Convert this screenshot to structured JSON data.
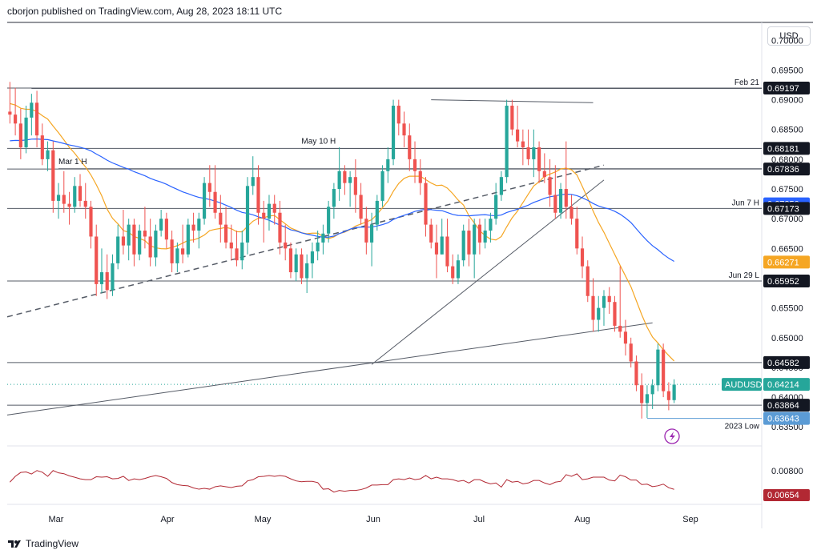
{
  "header": {
    "text": "cborjon published on TradingView.com, Aug 28, 2023 18:11 UTC"
  },
  "currency_button": "USD",
  "footer": {
    "logo_text": "TradingView"
  },
  "colors": {
    "up": "#26a69a",
    "down": "#ef5350",
    "sma50": "#f5a623",
    "sma200": "#2962ff",
    "lines": "#555b66",
    "indicator": "#b22833"
  },
  "chart_data": {
    "type": "candlestick",
    "symbol": "AUDUSD",
    "price_axis": {
      "range": [
        0.6318,
        0.703
      ],
      "ticks": [
        "0.70000",
        "0.69500",
        "0.69000",
        "0.68500",
        "0.68000",
        "0.67500",
        "0.67000",
        "0.66500",
        "0.66000",
        "0.65500",
        "0.65000",
        "0.64500",
        "0.64000",
        "0.63500"
      ]
    },
    "x_axis": {
      "labels": [
        {
          "label": "Mar",
          "date": "2023-03-01"
        },
        {
          "label": "Apr",
          "date": "2023-04-03"
        },
        {
          "label": "May",
          "date": "2023-05-01"
        },
        {
          "label": "Jun",
          "date": "2023-06-01"
        },
        {
          "label": "Jul",
          "date": "2023-07-03"
        },
        {
          "label": "Aug",
          "date": "2023-08-01"
        },
        {
          "label": "Sep",
          "date": "2023-09-01"
        }
      ]
    },
    "badges": [
      {
        "value": "0.69197",
        "tag": "Feb 21",
        "kind": "level"
      },
      {
        "value": "0.68181",
        "tag": "",
        "kind": "level"
      },
      {
        "value": "0.67836",
        "tag": "",
        "kind": "level"
      },
      {
        "value": "0.67250",
        "tag": "",
        "kind": "sma200"
      },
      {
        "value": "0.67173",
        "tag": "Jun 7 H",
        "kind": "level"
      },
      {
        "value": "0.66271",
        "tag": "",
        "kind": "sma50"
      },
      {
        "value": "0.65952",
        "tag": "Jun 29 L",
        "kind": "level"
      },
      {
        "value": "0.64582",
        "tag": "",
        "kind": "level"
      },
      {
        "value": "0.64214",
        "tag": "AUDUSD",
        "kind": "price"
      },
      {
        "value": "0.63864",
        "tag": "",
        "kind": "level"
      },
      {
        "value": "0.63643",
        "tag": "2023 Low",
        "kind": "low"
      }
    ],
    "annotations": [
      "Mar 1 H",
      "May 10 H"
    ],
    "candles": [
      {
        "o": 0.688,
        "h": 0.693,
        "l": 0.686,
        "c": 0.6875
      },
      {
        "o": 0.6875,
        "h": 0.692,
        "l": 0.684,
        "c": 0.686
      },
      {
        "o": 0.686,
        "h": 0.6885,
        "l": 0.68,
        "c": 0.682
      },
      {
        "o": 0.682,
        "h": 0.689,
        "l": 0.681,
        "c": 0.687
      },
      {
        "o": 0.687,
        "h": 0.691,
        "l": 0.684,
        "c": 0.6895
      },
      {
        "o": 0.6895,
        "h": 0.6915,
        "l": 0.682,
        "c": 0.684
      },
      {
        "o": 0.684,
        "h": 0.686,
        "l": 0.679,
        "c": 0.68
      },
      {
        "o": 0.68,
        "h": 0.683,
        "l": 0.678,
        "c": 0.6815
      },
      {
        "o": 0.6815,
        "h": 0.683,
        "l": 0.671,
        "c": 0.673
      },
      {
        "o": 0.673,
        "h": 0.676,
        "l": 0.67,
        "c": 0.674
      },
      {
        "o": 0.674,
        "h": 0.678,
        "l": 0.671,
        "c": 0.6725
      },
      {
        "o": 0.6725,
        "h": 0.6745,
        "l": 0.669,
        "c": 0.672
      },
      {
        "o": 0.672,
        "h": 0.677,
        "l": 0.671,
        "c": 0.6755
      },
      {
        "o": 0.6755,
        "h": 0.6775,
        "l": 0.672,
        "c": 0.673
      },
      {
        "o": 0.673,
        "h": 0.676,
        "l": 0.67,
        "c": 0.672
      },
      {
        "o": 0.672,
        "h": 0.673,
        "l": 0.665,
        "c": 0.667
      },
      {
        "o": 0.667,
        "h": 0.669,
        "l": 0.657,
        "c": 0.659
      },
      {
        "o": 0.659,
        "h": 0.665,
        "l": 0.6575,
        "c": 0.661
      },
      {
        "o": 0.661,
        "h": 0.664,
        "l": 0.6565,
        "c": 0.658
      },
      {
        "o": 0.658,
        "h": 0.664,
        "l": 0.657,
        "c": 0.6625
      },
      {
        "o": 0.6625,
        "h": 0.669,
        "l": 0.6615,
        "c": 0.667
      },
      {
        "o": 0.667,
        "h": 0.6715,
        "l": 0.664,
        "c": 0.6655
      },
      {
        "o": 0.6655,
        "h": 0.67,
        "l": 0.663,
        "c": 0.669
      },
      {
        "o": 0.669,
        "h": 0.67,
        "l": 0.662,
        "c": 0.664
      },
      {
        "o": 0.664,
        "h": 0.669,
        "l": 0.663,
        "c": 0.668
      },
      {
        "o": 0.668,
        "h": 0.672,
        "l": 0.665,
        "c": 0.667
      },
      {
        "o": 0.667,
        "h": 0.67,
        "l": 0.662,
        "c": 0.6635
      },
      {
        "o": 0.6635,
        "h": 0.669,
        "l": 0.662,
        "c": 0.668
      },
      {
        "o": 0.668,
        "h": 0.6715,
        "l": 0.667,
        "c": 0.67
      },
      {
        "o": 0.67,
        "h": 0.671,
        "l": 0.665,
        "c": 0.6665
      },
      {
        "o": 0.6665,
        "h": 0.668,
        "l": 0.661,
        "c": 0.6625
      },
      {
        "o": 0.6625,
        "h": 0.666,
        "l": 0.661,
        "c": 0.665
      },
      {
        "o": 0.665,
        "h": 0.669,
        "l": 0.6625,
        "c": 0.664
      },
      {
        "o": 0.664,
        "h": 0.67,
        "l": 0.6635,
        "c": 0.669
      },
      {
        "o": 0.669,
        "h": 0.671,
        "l": 0.666,
        "c": 0.668
      },
      {
        "o": 0.668,
        "h": 0.671,
        "l": 0.665,
        "c": 0.67
      },
      {
        "o": 0.67,
        "h": 0.677,
        "l": 0.669,
        "c": 0.676
      },
      {
        "o": 0.676,
        "h": 0.679,
        "l": 0.672,
        "c": 0.6745
      },
      {
        "o": 0.6745,
        "h": 0.679,
        "l": 0.67,
        "c": 0.671
      },
      {
        "o": 0.671,
        "h": 0.674,
        "l": 0.666,
        "c": 0.669
      },
      {
        "o": 0.669,
        "h": 0.672,
        "l": 0.665,
        "c": 0.666
      },
      {
        "o": 0.666,
        "h": 0.669,
        "l": 0.663,
        "c": 0.665
      },
      {
        "o": 0.665,
        "h": 0.668,
        "l": 0.662,
        "c": 0.663
      },
      {
        "o": 0.663,
        "h": 0.668,
        "l": 0.6615,
        "c": 0.666
      },
      {
        "o": 0.666,
        "h": 0.677,
        "l": 0.664,
        "c": 0.6755
      },
      {
        "o": 0.6755,
        "h": 0.6805,
        "l": 0.674,
        "c": 0.677
      },
      {
        "o": 0.677,
        "h": 0.679,
        "l": 0.669,
        "c": 0.671
      },
      {
        "o": 0.671,
        "h": 0.673,
        "l": 0.666,
        "c": 0.67
      },
      {
        "o": 0.67,
        "h": 0.674,
        "l": 0.668,
        "c": 0.6725
      },
      {
        "o": 0.6725,
        "h": 0.674,
        "l": 0.669,
        "c": 0.671
      },
      {
        "o": 0.671,
        "h": 0.673,
        "l": 0.664,
        "c": 0.666
      },
      {
        "o": 0.666,
        "h": 0.669,
        "l": 0.663,
        "c": 0.665
      },
      {
        "o": 0.665,
        "h": 0.666,
        "l": 0.66,
        "c": 0.661
      },
      {
        "o": 0.661,
        "h": 0.665,
        "l": 0.6595,
        "c": 0.664
      },
      {
        "o": 0.664,
        "h": 0.665,
        "l": 0.659,
        "c": 0.66
      },
      {
        "o": 0.66,
        "h": 0.664,
        "l": 0.6575,
        "c": 0.6625
      },
      {
        "o": 0.6625,
        "h": 0.666,
        "l": 0.66,
        "c": 0.6645
      },
      {
        "o": 0.6645,
        "h": 0.668,
        "l": 0.663,
        "c": 0.666
      },
      {
        "o": 0.666,
        "h": 0.669,
        "l": 0.664,
        "c": 0.6675
      },
      {
        "o": 0.6675,
        "h": 0.673,
        "l": 0.666,
        "c": 0.672
      },
      {
        "o": 0.672,
        "h": 0.676,
        "l": 0.67,
        "c": 0.675
      },
      {
        "o": 0.675,
        "h": 0.682,
        "l": 0.673,
        "c": 0.678
      },
      {
        "o": 0.678,
        "h": 0.679,
        "l": 0.674,
        "c": 0.676
      },
      {
        "o": 0.676,
        "h": 0.678,
        "l": 0.672,
        "c": 0.677
      },
      {
        "o": 0.677,
        "h": 0.68,
        "l": 0.671,
        "c": 0.674
      },
      {
        "o": 0.674,
        "h": 0.676,
        "l": 0.669,
        "c": 0.67
      },
      {
        "o": 0.67,
        "h": 0.672,
        "l": 0.664,
        "c": 0.666
      },
      {
        "o": 0.666,
        "h": 0.671,
        "l": 0.662,
        "c": 0.669
      },
      {
        "o": 0.669,
        "h": 0.674,
        "l": 0.668,
        "c": 0.673
      },
      {
        "o": 0.673,
        "h": 0.679,
        "l": 0.672,
        "c": 0.678
      },
      {
        "o": 0.678,
        "h": 0.682,
        "l": 0.676,
        "c": 0.68
      },
      {
        "o": 0.68,
        "h": 0.69,
        "l": 0.679,
        "c": 0.689
      },
      {
        "o": 0.689,
        "h": 0.69,
        "l": 0.684,
        "c": 0.686
      },
      {
        "o": 0.686,
        "h": 0.688,
        "l": 0.682,
        "c": 0.684
      },
      {
        "o": 0.684,
        "h": 0.686,
        "l": 0.678,
        "c": 0.68
      },
      {
        "o": 0.68,
        "h": 0.683,
        "l": 0.676,
        "c": 0.678
      },
      {
        "o": 0.678,
        "h": 0.68,
        "l": 0.674,
        "c": 0.676
      },
      {
        "o": 0.676,
        "h": 0.677,
        "l": 0.667,
        "c": 0.669
      },
      {
        "o": 0.669,
        "h": 0.67,
        "l": 0.665,
        "c": 0.666
      },
      {
        "o": 0.666,
        "h": 0.669,
        "l": 0.66,
        "c": 0.664
      },
      {
        "o": 0.664,
        "h": 0.67,
        "l": 0.664,
        "c": 0.667
      },
      {
        "o": 0.667,
        "h": 0.67,
        "l": 0.661,
        "c": 0.662
      },
      {
        "o": 0.662,
        "h": 0.664,
        "l": 0.659,
        "c": 0.66
      },
      {
        "o": 0.66,
        "h": 0.664,
        "l": 0.659,
        "c": 0.663
      },
      {
        "o": 0.663,
        "h": 0.669,
        "l": 0.662,
        "c": 0.668
      },
      {
        "o": 0.668,
        "h": 0.67,
        "l": 0.662,
        "c": 0.664
      },
      {
        "o": 0.664,
        "h": 0.67,
        "l": 0.66,
        "c": 0.669
      },
      {
        "o": 0.669,
        "h": 0.67,
        "l": 0.664,
        "c": 0.666
      },
      {
        "o": 0.666,
        "h": 0.67,
        "l": 0.665,
        "c": 0.668
      },
      {
        "o": 0.668,
        "h": 0.671,
        "l": 0.666,
        "c": 0.67
      },
      {
        "o": 0.67,
        "h": 0.676,
        "l": 0.669,
        "c": 0.674
      },
      {
        "o": 0.674,
        "h": 0.678,
        "l": 0.673,
        "c": 0.677
      },
      {
        "o": 0.677,
        "h": 0.69,
        "l": 0.676,
        "c": 0.689
      },
      {
        "o": 0.689,
        "h": 0.69,
        "l": 0.684,
        "c": 0.685
      },
      {
        "o": 0.685,
        "h": 0.689,
        "l": 0.682,
        "c": 0.683
      },
      {
        "o": 0.683,
        "h": 0.685,
        "l": 0.679,
        "c": 0.682
      },
      {
        "o": 0.682,
        "h": 0.685,
        "l": 0.679,
        "c": 0.68
      },
      {
        "o": 0.68,
        "h": 0.685,
        "l": 0.677,
        "c": 0.682
      },
      {
        "o": 0.682,
        "h": 0.683,
        "l": 0.676,
        "c": 0.678
      },
      {
        "o": 0.678,
        "h": 0.681,
        "l": 0.676,
        "c": 0.677
      },
      {
        "o": 0.677,
        "h": 0.68,
        "l": 0.672,
        "c": 0.674
      },
      {
        "o": 0.674,
        "h": 0.679,
        "l": 0.67,
        "c": 0.671
      },
      {
        "o": 0.671,
        "h": 0.676,
        "l": 0.67,
        "c": 0.675
      },
      {
        "o": 0.675,
        "h": 0.683,
        "l": 0.67,
        "c": 0.672
      },
      {
        "o": 0.672,
        "h": 0.674,
        "l": 0.669,
        "c": 0.67
      },
      {
        "o": 0.67,
        "h": 0.672,
        "l": 0.664,
        "c": 0.665
      },
      {
        "o": 0.665,
        "h": 0.667,
        "l": 0.66,
        "c": 0.662
      },
      {
        "o": 0.662,
        "h": 0.663,
        "l": 0.656,
        "c": 0.657
      },
      {
        "o": 0.657,
        "h": 0.66,
        "l": 0.651,
        "c": 0.653
      },
      {
        "o": 0.653,
        "h": 0.657,
        "l": 0.651,
        "c": 0.655
      },
      {
        "o": 0.655,
        "h": 0.658,
        "l": 0.652,
        "c": 0.657
      },
      {
        "o": 0.657,
        "h": 0.6585,
        "l": 0.654,
        "c": 0.656
      },
      {
        "o": 0.656,
        "h": 0.657,
        "l": 0.651,
        "c": 0.652
      },
      {
        "o": 0.652,
        "h": 0.662,
        "l": 0.65,
        "c": 0.651
      },
      {
        "o": 0.651,
        "h": 0.653,
        "l": 0.647,
        "c": 0.649
      },
      {
        "o": 0.649,
        "h": 0.65,
        "l": 0.645,
        "c": 0.646
      },
      {
        "o": 0.646,
        "h": 0.647,
        "l": 0.641,
        "c": 0.642
      },
      {
        "o": 0.642,
        "h": 0.644,
        "l": 0.6364,
        "c": 0.639
      },
      {
        "o": 0.639,
        "h": 0.642,
        "l": 0.6365,
        "c": 0.6405
      },
      {
        "o": 0.6405,
        "h": 0.643,
        "l": 0.638,
        "c": 0.642
      },
      {
        "o": 0.642,
        "h": 0.649,
        "l": 0.641,
        "c": 0.648
      },
      {
        "o": 0.648,
        "h": 0.649,
        "l": 0.64,
        "c": 0.641
      },
      {
        "o": 0.641,
        "h": 0.6425,
        "l": 0.6378,
        "c": 0.6395
      },
      {
        "o": 0.6395,
        "h": 0.643,
        "l": 0.639,
        "c": 0.6421
      }
    ]
  }
}
